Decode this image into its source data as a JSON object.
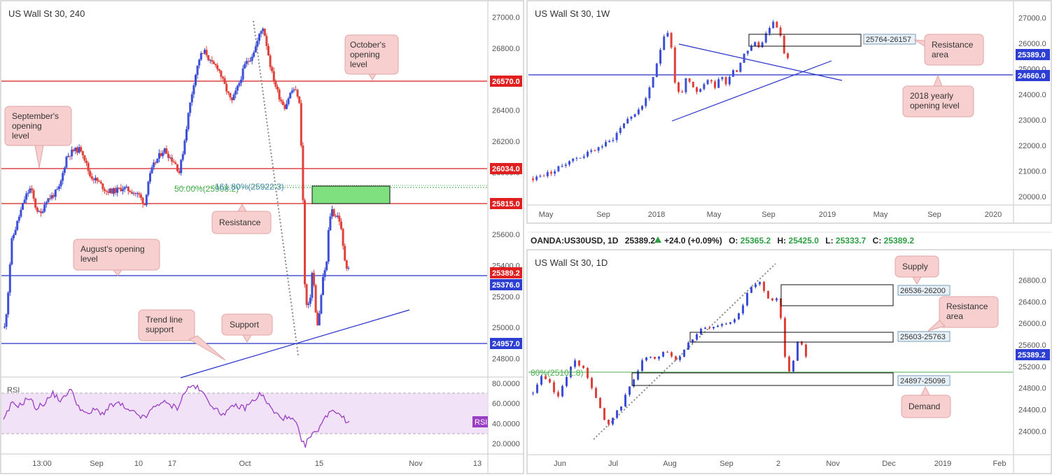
{
  "colors": {
    "up": "#3c4fd6",
    "down": "#e0413a",
    "red_line": "#d32020",
    "blue_line": "#2431c8",
    "green_zone": "#7ee07e",
    "fib_green": "#4caf50",
    "rsi_line": "#9a3fc4",
    "rsi_band": "#f1e2f7",
    "callout_bg": "#f7cfcf",
    "callout_border": "#e2a5a5",
    "price_red": "#e02020",
    "price_blue": "#2d3fd2"
  },
  "panels": {
    "left": {
      "title": "US Wall St 30, 240"
    },
    "weekly": {
      "title": "US Wall St 30, 1W"
    },
    "daily": {
      "title": "US Wall St 30, 1D",
      "info_symbol": "OANDA:US30USD, 1D",
      "info_last": "25389.2",
      "info_change": "+24.0 (+0.09%)",
      "info_open_label": "O:",
      "info_open": "25365.2",
      "info_high_label": "H:",
      "info_high": "25425.0",
      "info_low_label": "L:",
      "info_low": "25333.7",
      "info_close_label": "C:",
      "info_close": "25389.2"
    }
  },
  "chart_data": [
    {
      "chart": "US Wall St 30, 240",
      "type": "candlestick",
      "x_ticks": [
        "13:00",
        "Sep",
        "10",
        "17",
        "Oct",
        "15",
        "Nov",
        "13"
      ],
      "y_ticks": [
        24800,
        25000,
        25200,
        25400,
        25600,
        25800,
        26000,
        26200,
        26400,
        26600,
        26800,
        27000
      ],
      "ylim": [
        24730,
        27030
      ],
      "series_path": [
        [
          0,
          25000
        ],
        [
          4,
          25150
        ],
        [
          10,
          25550
        ],
        [
          20,
          25700
        ],
        [
          30,
          25840
        ],
        [
          38,
          25900
        ],
        [
          45,
          25780
        ],
        [
          52,
          25720
        ],
        [
          60,
          25820
        ],
        [
          70,
          25850
        ],
        [
          80,
          25900
        ],
        [
          90,
          26100
        ],
        [
          100,
          26140
        ],
        [
          112,
          26150
        ],
        [
          124,
          25980
        ],
        [
          136,
          25940
        ],
        [
          148,
          25880
        ],
        [
          160,
          25880
        ],
        [
          172,
          25900
        ],
        [
          184,
          25880
        ],
        [
          196,
          25850
        ],
        [
          204,
          25790
        ],
        [
          208,
          25930
        ],
        [
          216,
          26040
        ],
        [
          224,
          26100
        ],
        [
          232,
          26150
        ],
        [
          240,
          26100
        ],
        [
          248,
          26060
        ],
        [
          254,
          26000
        ],
        [
          260,
          26150
        ],
        [
          268,
          26400
        ],
        [
          276,
          26600
        ],
        [
          284,
          26750
        ],
        [
          292,
          26780
        ],
        [
          300,
          26700
        ],
        [
          310,
          26680
        ],
        [
          320,
          26560
        ],
        [
          330,
          26450
        ],
        [
          340,
          26560
        ],
        [
          350,
          26700
        ],
        [
          358,
          26740
        ],
        [
          366,
          26820
        ],
        [
          370,
          26880
        ],
        [
          376,
          26940
        ],
        [
          382,
          26800
        ],
        [
          388,
          26650
        ],
        [
          394,
          26560
        ],
        [
          400,
          26480
        ],
        [
          408,
          26420
        ],
        [
          414,
          26500
        ],
        [
          420,
          26540
        ],
        [
          426,
          26500
        ],
        [
          430,
          26400
        ],
        [
          432,
          26050
        ],
        [
          434,
          25800
        ],
        [
          436,
          25300
        ],
        [
          440,
          25100
        ],
        [
          444,
          25180
        ],
        [
          448,
          25400
        ],
        [
          452,
          25100
        ],
        [
          456,
          25000
        ],
        [
          460,
          25200
        ],
        [
          464,
          25350
        ],
        [
          468,
          25400
        ],
        [
          472,
          25700
        ],
        [
          476,
          25760
        ],
        [
          480,
          25720
        ],
        [
          484,
          25720
        ],
        [
          488,
          25680
        ],
        [
          492,
          25520
        ],
        [
          496,
          25400
        ],
        [
          500,
          25389
        ]
      ],
      "last_price": 25389.2,
      "levels": [
        {
          "label": "October's opening level",
          "value": 26570
        },
        {
          "label": "September's opening level",
          "value": 26034
        },
        {
          "label": "Resistance",
          "value": 25815
        },
        {
          "label": "August's opening level",
          "value": 25376
        },
        {
          "label": "Support",
          "value": 24957
        }
      ],
      "resistance_zone": [
        25815,
        25922
      ],
      "fib_labels": [
        "50.00%(25908.2)",
        "161.80%(25922.3)"
      ],
      "trend_line_label": "Trend line support",
      "rsi": {
        "label": "RSI",
        "y_ticks": [
          20,
          40,
          60,
          80
        ],
        "band": [
          30,
          70
        ],
        "path": [
          [
            0,
            42
          ],
          [
            12,
            60
          ],
          [
            24,
            58
          ],
          [
            36,
            66
          ],
          [
            48,
            55
          ],
          [
            60,
            61
          ],
          [
            72,
            70
          ],
          [
            84,
            62
          ],
          [
            96,
            75
          ],
          [
            108,
            58
          ],
          [
            120,
            48
          ],
          [
            132,
            54
          ],
          [
            144,
            50
          ],
          [
            156,
            58
          ],
          [
            168,
            60
          ],
          [
            180,
            52
          ],
          [
            192,
            50
          ],
          [
            204,
            45
          ],
          [
            216,
            55
          ],
          [
            228,
            62
          ],
          [
            240,
            58
          ],
          [
            252,
            56
          ],
          [
            264,
            74
          ],
          [
            276,
            78
          ],
          [
            288,
            70
          ],
          [
            300,
            60
          ],
          [
            312,
            50
          ],
          [
            324,
            52
          ],
          [
            336,
            58
          ],
          [
            348,
            55
          ],
          [
            360,
            62
          ],
          [
            372,
            70
          ],
          [
            380,
            62
          ],
          [
            392,
            50
          ],
          [
            404,
            46
          ],
          [
            416,
            44
          ],
          [
            424,
            40
          ],
          [
            430,
            22
          ],
          [
            436,
            18
          ],
          [
            442,
            26
          ],
          [
            450,
            30
          ],
          [
            458,
            38
          ],
          [
            466,
            46
          ],
          [
            472,
            54
          ],
          [
            480,
            52
          ],
          [
            488,
            50
          ],
          [
            494,
            42
          ],
          [
            500,
            41
          ]
        ]
      }
    },
    {
      "chart": "US Wall St 30, 1W",
      "type": "candlestick",
      "x_ticks": [
        "May",
        "Sep",
        "2018",
        "May",
        "Sep",
        "2019",
        "May",
        "Sep",
        "2020"
      ],
      "y_ticks": [
        20000,
        21000,
        22000,
        23000,
        24000,
        25000,
        26000,
        27000
      ],
      "ylim": [
        19750,
        27200
      ],
      "series_path": [
        [
          0,
          20700
        ],
        [
          10,
          20800
        ],
        [
          30,
          21000
        ],
        [
          50,
          21400
        ],
        [
          70,
          21600
        ],
        [
          90,
          21900
        ],
        [
          110,
          22200
        ],
        [
          130,
          23000
        ],
        [
          150,
          23400
        ],
        [
          166,
          24400
        ],
        [
          178,
          25800
        ],
        [
          186,
          26600
        ],
        [
          192,
          26200
        ],
        [
          198,
          24500
        ],
        [
          206,
          23900
        ],
        [
          214,
          24600
        ],
        [
          222,
          24300
        ],
        [
          230,
          24000
        ],
        [
          238,
          24400
        ],
        [
          246,
          24600
        ],
        [
          254,
          24300
        ],
        [
          262,
          24800
        ],
        [
          270,
          24400
        ],
        [
          278,
          25000
        ],
        [
          286,
          24900
        ],
        [
          294,
          25600
        ],
        [
          302,
          25800
        ],
        [
          310,
          26000
        ],
        [
          318,
          25800
        ],
        [
          326,
          26500
        ],
        [
          334,
          26800
        ],
        [
          340,
          26700
        ],
        [
          346,
          26300
        ],
        [
          350,
          25600
        ],
        [
          356,
          25389
        ]
      ],
      "last_price": 25389.0,
      "levels": [
        {
          "label": "2018 yearly opening level",
          "value": 24660
        }
      ],
      "zones": [
        {
          "label": "Resistance area",
          "text": "25764-26157",
          "range": [
            25764,
            26157
          ]
        }
      ]
    },
    {
      "chart": "US Wall St 30, 1D",
      "type": "candlestick",
      "x_ticks": [
        "Jun",
        "Jul",
        "Aug",
        "Sep",
        "2",
        "Nov",
        "Dec",
        "2019",
        "Feb"
      ],
      "y_ticks": [
        24000,
        24400,
        24800,
        25200,
        25600,
        26000,
        26400,
        26800
      ],
      "ylim": [
        23850,
        27000
      ],
      "series_path": [
        [
          0,
          24700
        ],
        [
          12,
          25000
        ],
        [
          24,
          24900
        ],
        [
          36,
          24600
        ],
        [
          48,
          25000
        ],
        [
          60,
          25300
        ],
        [
          72,
          25200
        ],
        [
          84,
          24900
        ],
        [
          96,
          24500
        ],
        [
          104,
          24200
        ],
        [
          112,
          24100
        ],
        [
          120,
          24300
        ],
        [
          130,
          24500
        ],
        [
          140,
          24800
        ],
        [
          150,
          25000
        ],
        [
          160,
          25300
        ],
        [
          170,
          25400
        ],
        [
          180,
          25300
        ],
        [
          190,
          25500
        ],
        [
          200,
          25450
        ],
        [
          212,
          25300
        ],
        [
          224,
          25600
        ],
        [
          236,
          25750
        ],
        [
          248,
          25900
        ],
        [
          260,
          25900
        ],
        [
          272,
          25950
        ],
        [
          284,
          26000
        ],
        [
          296,
          26100
        ],
        [
          306,
          26300
        ],
        [
          316,
          26600
        ],
        [
          324,
          26700
        ],
        [
          330,
          26800
        ],
        [
          336,
          26700
        ],
        [
          342,
          26500
        ],
        [
          348,
          26400
        ],
        [
          354,
          26500
        ],
        [
          360,
          26450
        ],
        [
          364,
          26000
        ],
        [
          366,
          25600
        ],
        [
          370,
          25300
        ],
        [
          376,
          25100
        ],
        [
          382,
          25300
        ],
        [
          388,
          25700
        ],
        [
          394,
          25600
        ],
        [
          400,
          25389
        ]
      ],
      "last_price": 25389.2,
      "fib_label": "80%(25101.8)",
      "fib_value": 25101.8,
      "zones": [
        {
          "label": "Supply",
          "text": "26536-26200",
          "range": [
            26200,
            26536
          ]
        },
        {
          "label": "Resistance area",
          "text": "25603-25763",
          "range": [
            25603,
            25763
          ]
        },
        {
          "label": "Demand",
          "text": "24897-25096",
          "range": [
            24897,
            25096
          ]
        }
      ]
    }
  ],
  "left_text": {
    "fib_50": "50.00%(25908.2)",
    "fib_161": "161.80%(25922.3)",
    "callout_october": "October's opening level",
    "callout_september": "September's opening level",
    "callout_resistance": "Resistance",
    "callout_august": "August's opening level",
    "callout_trend": "Trend line support",
    "callout_support": "Support",
    "rsi_label": "RSI",
    "rsi_tag": "RSI",
    "price_26570": "26570.0",
    "price_26034": "26034.0",
    "price_25815": "25815.0",
    "price_25389": "25389.2",
    "price_25376": "25376.0",
    "price_24957": "24957.0"
  },
  "weekly_text": {
    "zone_label": "25764-26157",
    "callout_resistance": "Resistance area",
    "callout_yearly": "2018 yearly opening level",
    "price_last": "25389.0",
    "price_yearly": "24660.0"
  },
  "daily_text": {
    "zone_supply": "26536-26200",
    "zone_resistance": "25603-25763",
    "zone_demand": "24897-25096",
    "callout_supply": "Supply",
    "callout_resistance": "Resistance area",
    "callout_demand": "Demand",
    "fib": "80%(25101.8)",
    "price_last": "25389.2"
  }
}
